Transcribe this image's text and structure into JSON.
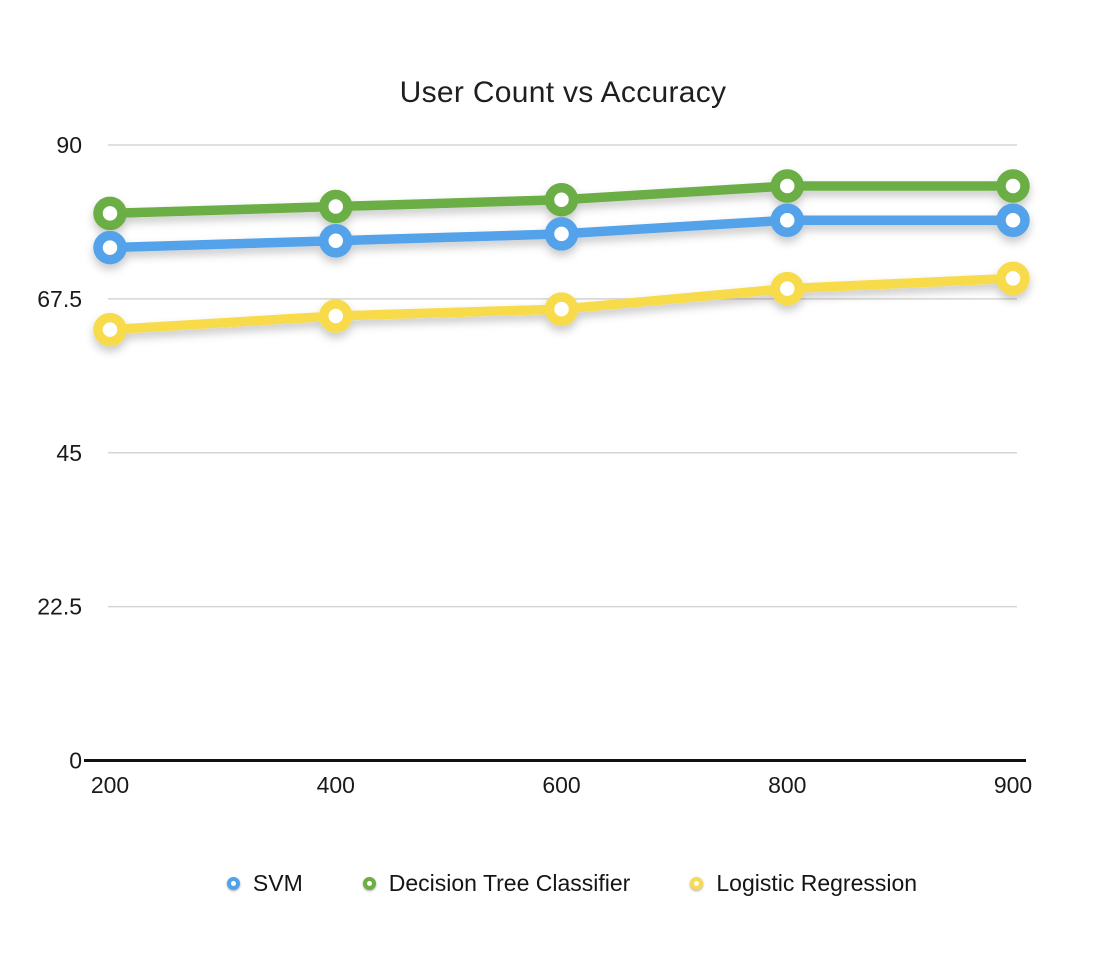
{
  "page": {
    "background": "#FFFFFF"
  },
  "chart_data": {
    "type": "line",
    "title": "User Count vs Accuracy",
    "xlabel": "",
    "ylabel": "",
    "categories": [
      "200",
      "400",
      "600",
      "800",
      "900"
    ],
    "series": [
      {
        "name": "SVM",
        "color": "#52A2EA",
        "values": [
          75,
          76,
          77,
          79,
          79
        ]
      },
      {
        "name": "Decision Tree Classifier",
        "color": "#6AAE44",
        "values": [
          80,
          81,
          82,
          84,
          84
        ]
      },
      {
        "name": "Logistic Regression",
        "color": "#F8DB4C",
        "values": [
          63,
          65,
          66,
          69,
          70.5
        ]
      }
    ],
    "ylim": [
      0,
      90
    ],
    "y_ticks": [
      0,
      22.5,
      45,
      67.5,
      90
    ],
    "y_tick_labels": [
      "0",
      "22.5",
      "45",
      "67.5",
      "90"
    ],
    "grid": true,
    "legend_position": "bottom",
    "axis_color": "#111111",
    "gridline_color": "#D6D6D6",
    "marker_style": "donut",
    "title_color": "#1F1F1F",
    "tick_label_color": "#1A1A1A"
  }
}
